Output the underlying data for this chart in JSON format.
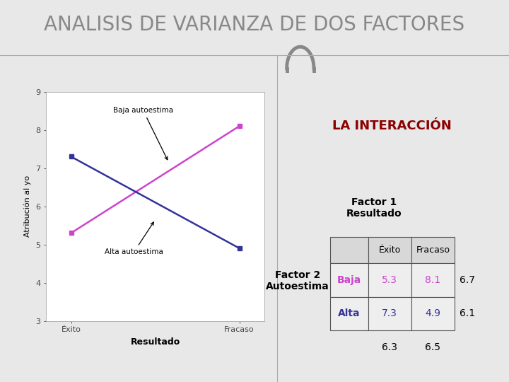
{
  "title": "ANALISIS DE VARIANZA DE DOS FACTORES",
  "title_fontsize": 20,
  "title_color": "#888888",
  "bg_color": "#e8e8e8",
  "panel_bg": "#ffffff",
  "right_panel_bg": "#f5f5f5",
  "interaction_label": "LA INTERACCIÓN",
  "interaction_color": "#8b0000",
  "plot_ylabel": "Atribución al yo",
  "plot_xlabel": "Resultado",
  "plot_xticks": [
    "Éxito",
    "Fracaso"
  ],
  "plot_yticks": [
    3,
    4,
    5,
    6,
    7,
    8,
    9
  ],
  "plot_ylim": [
    3,
    9
  ],
  "baja_line": [
    5.3,
    8.1
  ],
  "alta_line": [
    7.3,
    4.9
  ],
  "baja_color": "#cc44cc",
  "alta_color": "#333399",
  "baja_label": "Baja autoestima",
  "alta_label": "Alta autoestima",
  "table_header1": "Factor 1",
  "table_header2": "Resultado",
  "col_exito": "Éxito",
  "col_fracaso": "Fracaso",
  "factor2_label": "Factor 2\nAutoestima",
  "row_baja": "Baja",
  "row_alta": "Alta",
  "val_baja_exito": "5.3",
  "val_baja_fracaso": "8.1",
  "val_alta_exito": "7.3",
  "val_alta_fracaso": "4.9",
  "row_mean_baja": "6.7",
  "row_mean_alta": "6.1",
  "col_mean_exito": "6.3",
  "col_mean_fracaso": "6.5",
  "arch_color": "#888888"
}
